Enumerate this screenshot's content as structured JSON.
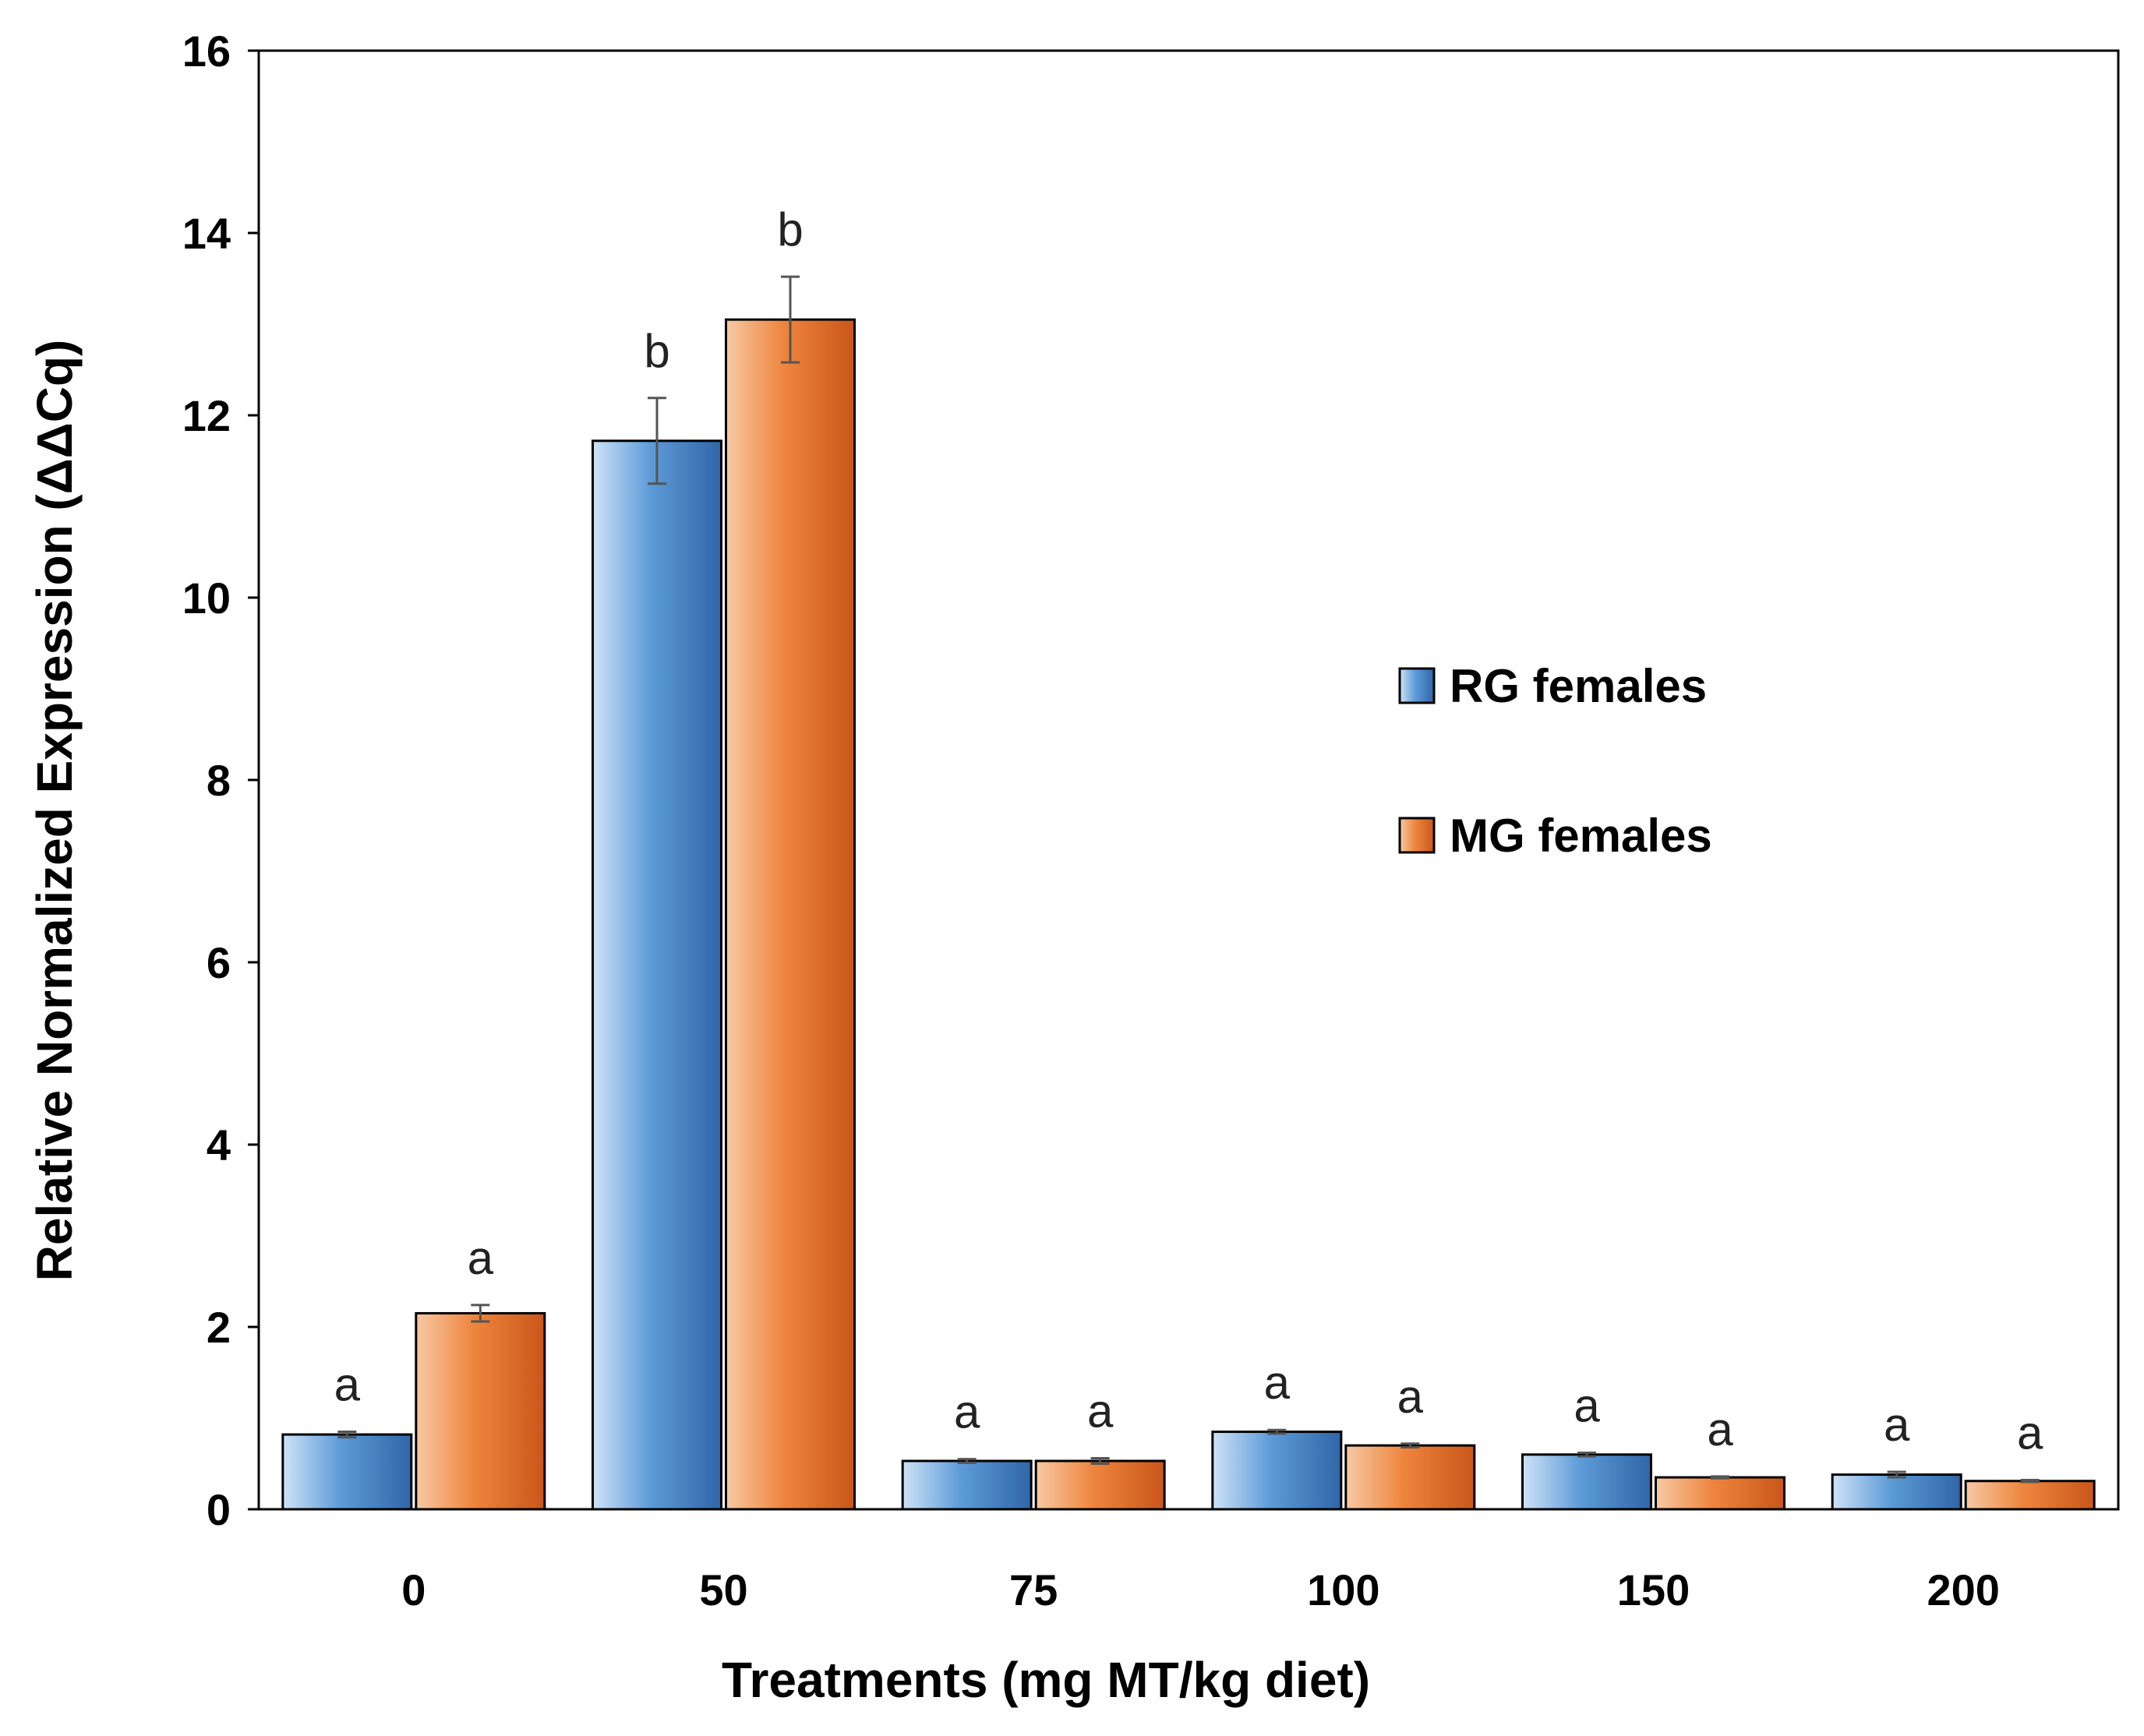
{
  "chart_data": {
    "type": "bar",
    "title": "",
    "xlabel": "Treatments (mg MT/kg diet)",
    "ylabel": "Relative Normalized Expression (ΔΔCq)",
    "ylim": [
      0,
      16
    ],
    "yticks": [
      "0",
      "2",
      "4",
      "6",
      "8",
      "10",
      "12",
      "14",
      "16"
    ],
    "categories": [
      "0",
      "50",
      "75",
      "100",
      "150",
      "200"
    ],
    "grid": false,
    "legend_position": "center-right",
    "series": [
      {
        "name": "RG females",
        "color": "#4a8ccc",
        "values": [
          0.82,
          11.72,
          0.53,
          0.85,
          0.6,
          0.38
        ],
        "errors": [
          0.03,
          0.47,
          0.02,
          0.02,
          0.02,
          0.03
        ],
        "significance": [
          "a",
          "b",
          "a",
          "a",
          "a",
          "a"
        ]
      },
      {
        "name": "MG females",
        "color": "#e77b30",
        "values": [
          2.15,
          13.05,
          0.53,
          0.7,
          0.35,
          0.31
        ],
        "errors": [
          0.09,
          0.47,
          0.03,
          0.02,
          0.01,
          0.01
        ],
        "significance": [
          "a",
          "b",
          "a",
          "a",
          "a",
          "a"
        ]
      }
    ]
  }
}
